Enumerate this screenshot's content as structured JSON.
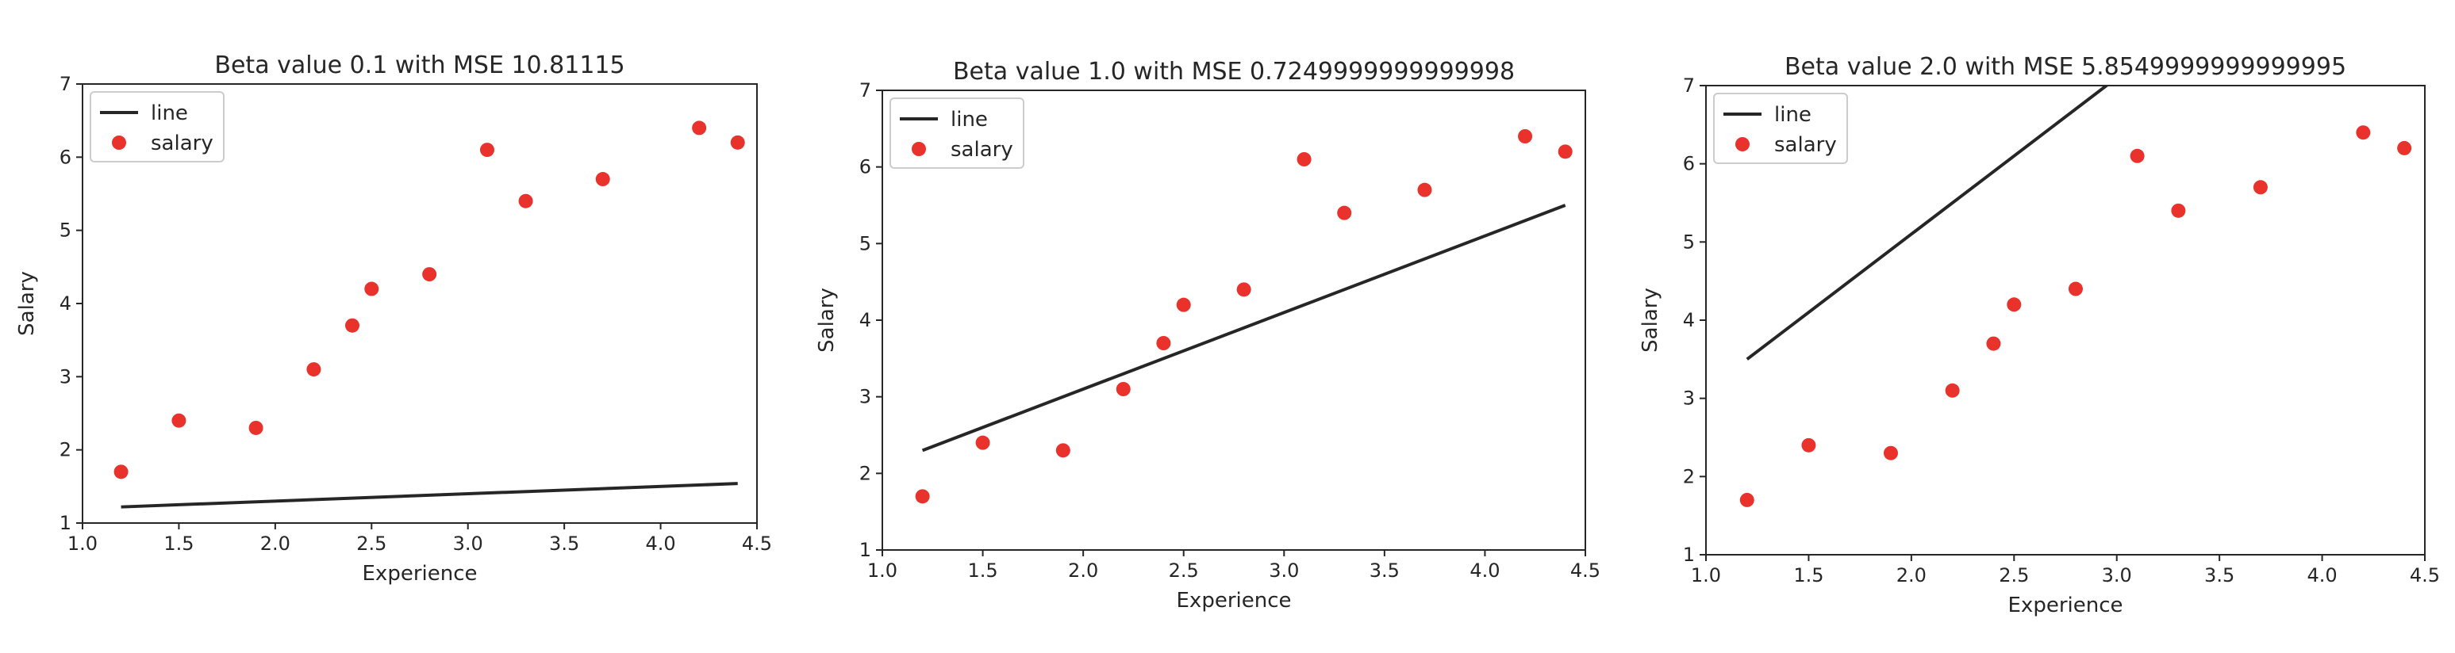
{
  "colors": {
    "line": "#262626",
    "salary": "#e8322b"
  },
  "chart_data": [
    {
      "type": "scatter",
      "title": "Beta value 0.1 with MSE 10.81115",
      "xlabel": "Experience",
      "ylabel": "Salary",
      "xlim": [
        1.0,
        4.5
      ],
      "ylim": [
        1,
        7
      ],
      "xticks": [
        "1.0",
        "1.5",
        "2.0",
        "2.5",
        "3.0",
        "3.5",
        "4.0",
        "4.5"
      ],
      "yticks": [
        "1",
        "2",
        "3",
        "4",
        "5",
        "6",
        "7"
      ],
      "legend": {
        "position": "top-left",
        "entries": [
          "line",
          "salary"
        ]
      },
      "series": [
        {
          "name": "line",
          "kind": "line",
          "x": [
            1.2,
            4.4
          ],
          "y": [
            1.22,
            1.54
          ]
        },
        {
          "name": "salary",
          "kind": "scatter",
          "x": [
            1.2,
            1.5,
            1.9,
            2.2,
            2.4,
            2.5,
            2.8,
            3.1,
            3.3,
            3.7,
            4.2,
            4.4
          ],
          "y": [
            1.7,
            2.4,
            2.3,
            3.1,
            3.7,
            4.2,
            4.4,
            6.1,
            5.4,
            5.7,
            6.4,
            6.2
          ]
        }
      ]
    },
    {
      "type": "scatter",
      "title": "Beta value 1.0 with MSE 0.7249999999999998",
      "xlabel": "Experience",
      "ylabel": "Salary",
      "xlim": [
        1.0,
        4.5
      ],
      "ylim": [
        1,
        7
      ],
      "xticks": [
        "1.0",
        "1.5",
        "2.0",
        "2.5",
        "3.0",
        "3.5",
        "4.0",
        "4.5"
      ],
      "yticks": [
        "1",
        "2",
        "3",
        "4",
        "5",
        "6",
        "7"
      ],
      "legend": {
        "position": "top-left",
        "entries": [
          "line",
          "salary"
        ]
      },
      "series": [
        {
          "name": "line",
          "kind": "line",
          "x": [
            1.2,
            4.4
          ],
          "y": [
            2.3,
            5.5
          ]
        },
        {
          "name": "salary",
          "kind": "scatter",
          "x": [
            1.2,
            1.5,
            1.9,
            2.2,
            2.4,
            2.5,
            2.8,
            3.1,
            3.3,
            3.7,
            4.2,
            4.4
          ],
          "y": [
            1.7,
            2.4,
            2.3,
            3.1,
            3.7,
            4.2,
            4.4,
            6.1,
            5.4,
            5.7,
            6.4,
            6.2
          ]
        }
      ]
    },
    {
      "type": "scatter",
      "title": "Beta value 2.0 with MSE 5.8549999999999995",
      "xlabel": "Experience",
      "ylabel": "Salary",
      "xlim": [
        1.0,
        4.5
      ],
      "ylim": [
        1,
        7
      ],
      "xticks": [
        "1.0",
        "1.5",
        "2.0",
        "2.5",
        "3.0",
        "3.5",
        "4.0",
        "4.5"
      ],
      "yticks": [
        "1",
        "2",
        "3",
        "4",
        "5",
        "6",
        "7"
      ],
      "legend": {
        "position": "top-left",
        "entries": [
          "line",
          "salary"
        ]
      },
      "series": [
        {
          "name": "line",
          "kind": "line",
          "x": [
            1.2,
            4.4
          ],
          "y": [
            3.5,
            9.9
          ]
        },
        {
          "name": "salary",
          "kind": "scatter",
          "x": [
            1.2,
            1.5,
            1.9,
            2.2,
            2.4,
            2.5,
            2.8,
            3.1,
            3.3,
            3.7,
            4.2,
            4.4
          ],
          "y": [
            1.7,
            2.4,
            2.3,
            3.1,
            3.7,
            4.2,
            4.4,
            6.1,
            5.4,
            5.7,
            6.4,
            6.2
          ]
        }
      ]
    }
  ]
}
